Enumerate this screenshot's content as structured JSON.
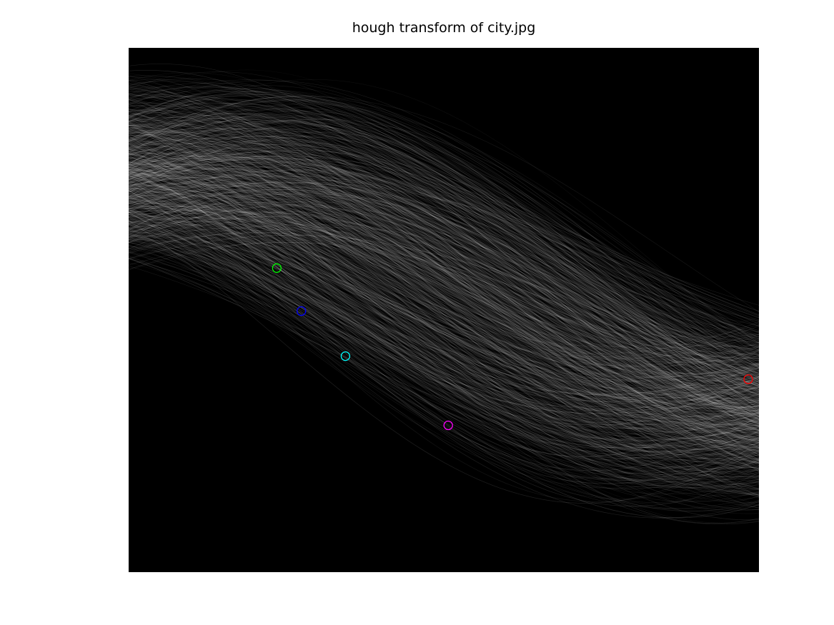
{
  "chart_data": {
    "type": "heatmap",
    "title": "hough transform of city.jpg",
    "xlabel": "",
    "ylabel": "",
    "colormap": "gray",
    "background_color": "#000000",
    "axes_visible": false,
    "grid": false,
    "x_range": [
      0,
      1
    ],
    "y_range": [
      0,
      1
    ],
    "peaks": [
      {
        "x": 0.235,
        "y": 0.42,
        "color": "#00ff00"
      },
      {
        "x": 0.274,
        "y": 0.502,
        "color": "#0000ff"
      },
      {
        "x": 0.344,
        "y": 0.588,
        "color": "#00ffff"
      },
      {
        "x": 0.507,
        "y": 0.72,
        "color": "#ff00ff"
      },
      {
        "x": 0.983,
        "y": 0.632,
        "color": "#ff0000"
      }
    ]
  }
}
